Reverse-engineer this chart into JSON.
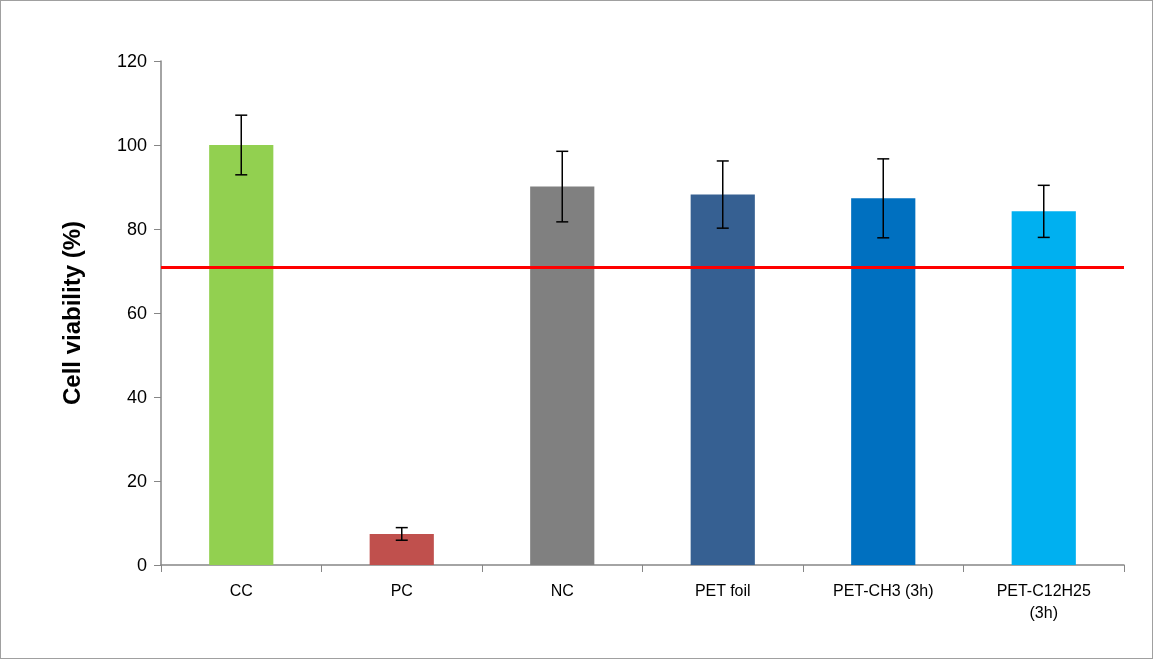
{
  "chart_data": {
    "type": "bar",
    "ylabel": "Cell viability (%)",
    "categories": [
      "CC",
      "PC",
      "NC",
      "PET foil",
      "PET-CH3 (3h)",
      "PET-C12H25\n(3h)"
    ],
    "values": [
      100,
      7.4,
      90.1,
      88.2,
      87.3,
      84.2
    ],
    "colors": [
      "#92d050",
      "#c0504d",
      "#808080",
      "#366092",
      "#0070c0",
      "#00b0f0"
    ],
    "errors": [
      7.1,
      1.5,
      8.4,
      8,
      9.4,
      6.2
    ],
    "ylim": [
      0,
      120
    ],
    "yticks": [
      0,
      20,
      40,
      60,
      80,
      100,
      120
    ],
    "grid": false,
    "ref_lines": [
      {
        "axis": "y",
        "value": 71,
        "color": "#ff0000",
        "line_style": "solid"
      }
    ]
  }
}
